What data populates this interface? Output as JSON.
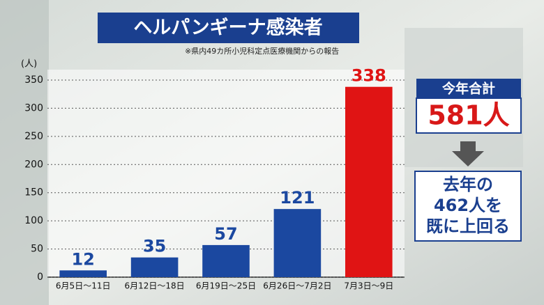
{
  "chart_data": {
    "type": "bar",
    "title": "ヘルパンギーナ感染者",
    "subtitle": "※県内49カ所小児科定点医療機関からの報告",
    "y_label": "(人)",
    "categories": [
      "6月5日〜11日",
      "6月12日〜18日",
      "6月19日〜25日",
      "6月26日〜7月2日",
      "7月3日〜9日"
    ],
    "values": [
      12,
      35,
      57,
      121,
      338
    ],
    "colors": [
      "#1b48a0",
      "#1b48a0",
      "#1b48a0",
      "#1b48a0",
      "#e01414"
    ],
    "ylim": [
      0,
      350
    ],
    "yticks": [
      0,
      50,
      100,
      150,
      200,
      250,
      300,
      350
    ],
    "grid": true,
    "annotations": {
      "total_label": "今年合計",
      "total_value": "581人",
      "comparison": [
        "去年の",
        "462人を",
        "既に上回る"
      ]
    }
  }
}
